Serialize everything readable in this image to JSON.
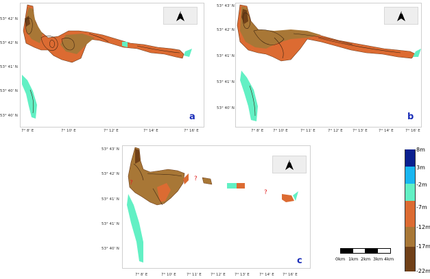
{
  "panels": [
    {
      "letter": "a",
      "lat_labels": [
        "53° 42' N",
        "53° 42' N",
        "53° 41' N",
        "53° 40' N",
        "53° 40' N"
      ],
      "lon_labels": [
        "7° 8' E",
        "7° 10' E",
        "7° 12' E",
        "7° 14' E",
        "7° 16' E"
      ]
    },
    {
      "letter": "b",
      "lat_labels": [
        "53° 43' N",
        "53° 42' N",
        "53° 41' N",
        "53° 41' N",
        "53° 40' N"
      ],
      "lon_labels": [
        "7° 8' E",
        "7° 10' E",
        "7° 11' E",
        "7° 12' E",
        "7° 13' E",
        "7° 14' E",
        "7° 16' E"
      ]
    },
    {
      "letter": "c",
      "lat_labels": [
        "53° 43' N",
        "53° 42' N",
        "53° 41' N",
        "53° 41' N",
        "53° 40' N"
      ],
      "lon_labels": [
        "7° 8' E",
        "7° 10' E",
        "7° 11' E",
        "7° 12' E",
        "7° 13' E",
        "7° 14' E",
        "7° 16' E"
      ],
      "unknown_marker": "?"
    }
  ],
  "north_arrow": {
    "label": "N"
  },
  "legend": {
    "entries": [
      "8m",
      "3m",
      "-2m",
      "-7m",
      "-12m",
      "-17m",
      "-22m"
    ],
    "colors": [
      "#0a1f8f",
      "#19b6f0",
      "#62f0c4",
      "#dc6b32",
      "#a87736",
      "#704018"
    ]
  },
  "scale_bar": {
    "labels": [
      "0km",
      "1km",
      "2km",
      "3km",
      "4km"
    ]
  }
}
